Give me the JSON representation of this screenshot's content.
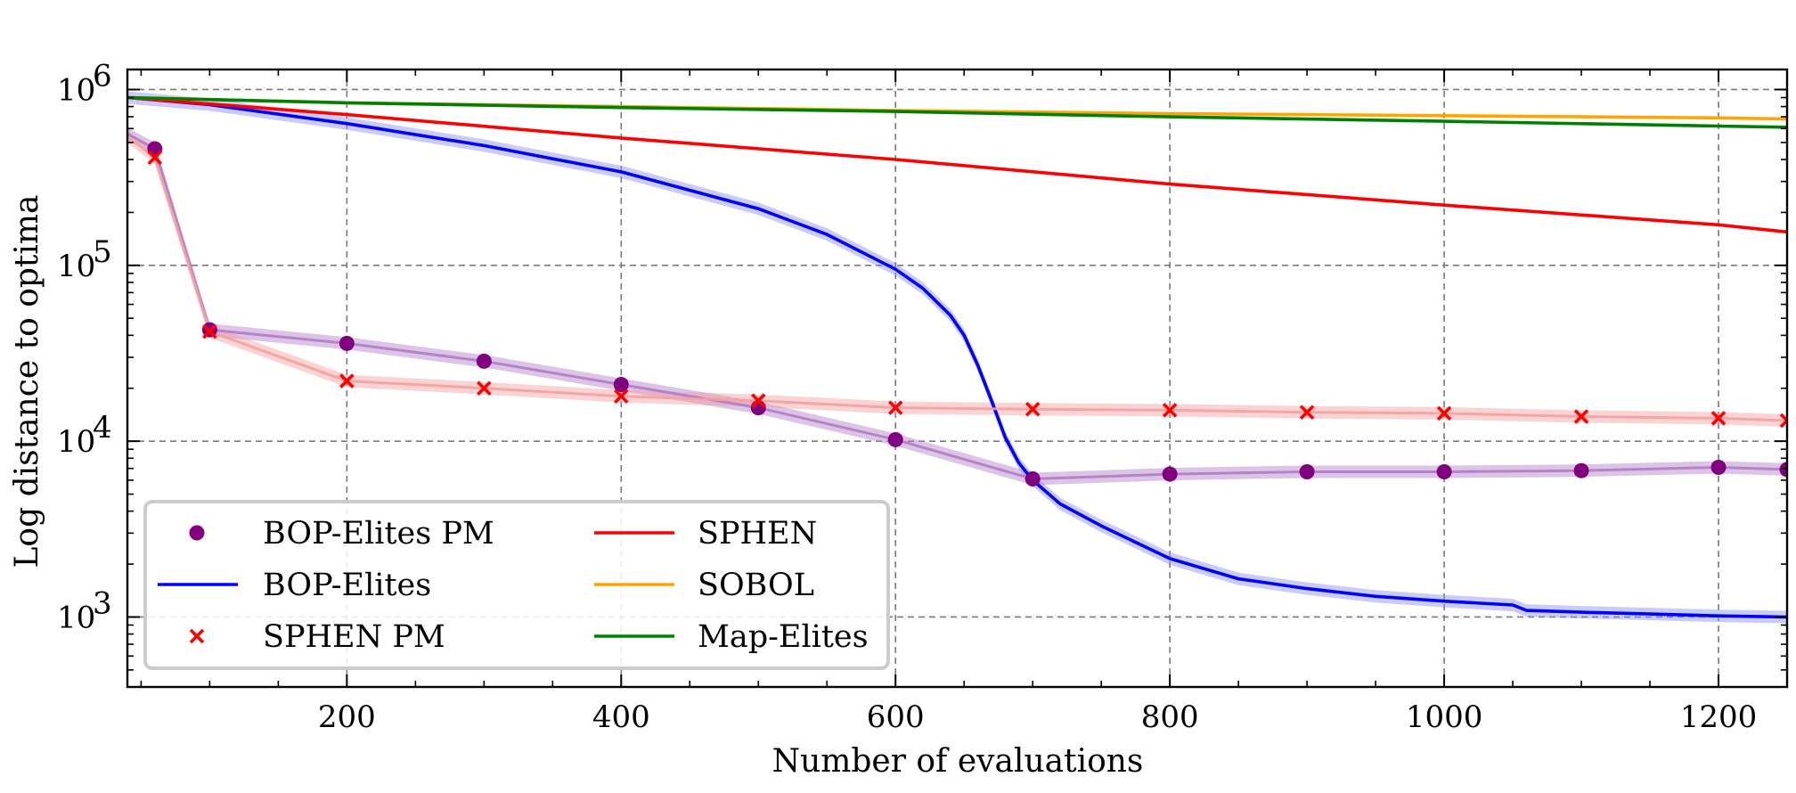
{
  "chart_data": {
    "type": "line",
    "title": "",
    "xlabel": "Number of evaluations",
    "ylabel": "Log distance to optima",
    "xscale": "linear",
    "yscale": "log",
    "xlim": [
      40,
      1250
    ],
    "ylim": [
      400,
      1300000
    ],
    "xticks": [
      {
        "value": 200,
        "label": "200"
      },
      {
        "value": 400,
        "label": "400"
      },
      {
        "value": 600,
        "label": "600"
      },
      {
        "value": 800,
        "label": "800"
      },
      {
        "value": 1000,
        "label": "1000"
      },
      {
        "value": 1200,
        "label": "1200"
      }
    ],
    "yticks": [
      {
        "value": 1000,
        "base": "10",
        "exp": "3"
      },
      {
        "value": 10000,
        "base": "10",
        "exp": "4"
      },
      {
        "value": 100000,
        "base": "10",
        "exp": "5"
      },
      {
        "value": 1000000,
        "base": "10",
        "exp": "6"
      }
    ],
    "grid": true,
    "legend_position": "lower-left",
    "series": [
      {
        "name": "BOP-Elites PM",
        "kind": "markers-line-band",
        "marker": "circle",
        "color": "#800080",
        "band_color": "#b07cc6",
        "x": [
          40,
          60,
          100,
          200,
          300,
          400,
          500,
          600,
          700,
          800,
          900,
          1000,
          1100,
          1200,
          1250
        ],
        "y": [
          560000,
          460000,
          43000,
          36000,
          28500,
          21000,
          15500,
          10200,
          6100,
          6500,
          6700,
          6700,
          6800,
          7100,
          6900
        ],
        "marker_x": [
          60,
          100,
          200,
          300,
          400,
          500,
          600,
          700,
          800,
          900,
          1000,
          1100,
          1200,
          1250
        ]
      },
      {
        "name": "BOP-Elites",
        "kind": "line-band",
        "color": "#0000ff",
        "band_color": "#8c8cf0",
        "x": [
          40,
          100,
          200,
          300,
          400,
          500,
          550,
          600,
          620,
          640,
          650,
          660,
          670,
          680,
          690,
          700,
          720,
          750,
          800,
          850,
          900,
          950,
          1000,
          1050,
          1060,
          1100,
          1150,
          1200,
          1250
        ],
        "y": [
          900000,
          820000,
          640000,
          480000,
          340000,
          210000,
          150000,
          95000,
          74000,
          52000,
          40000,
          27000,
          17000,
          10500,
          7500,
          6000,
          4400,
          3300,
          2150,
          1650,
          1450,
          1310,
          1230,
          1170,
          1090,
          1065,
          1040,
          1015,
          1000
        ]
      },
      {
        "name": "SPHEN PM",
        "kind": "markers-line-band",
        "marker": "x",
        "color": "#ff0000",
        "band_color": "#f5a0a0",
        "x": [
          40,
          60,
          100,
          200,
          300,
          400,
          500,
          600,
          700,
          800,
          900,
          1000,
          1100,
          1200,
          1250
        ],
        "y": [
          540000,
          410000,
          42000,
          22000,
          20000,
          18000,
          17000,
          15500,
          15200,
          15000,
          14600,
          14400,
          13800,
          13500,
          13100
        ],
        "marker_x": [
          60,
          100,
          200,
          300,
          400,
          500,
          600,
          700,
          800,
          900,
          1000,
          1100,
          1200,
          1250
        ]
      },
      {
        "name": "SPHEN",
        "kind": "line",
        "color": "#ff0000",
        "x": [
          40,
          200,
          400,
          600,
          800,
          1000,
          1200,
          1250
        ],
        "y": [
          900000,
          720000,
          530000,
          400000,
          290000,
          220000,
          170000,
          155000
        ]
      },
      {
        "name": "SOBOL",
        "kind": "line",
        "color": "#ffa500",
        "x": [
          40,
          200,
          400,
          600,
          800,
          1000,
          1200,
          1250
        ],
        "y": [
          900000,
          840000,
          800000,
          760000,
          730000,
          710000,
          690000,
          680000
        ]
      },
      {
        "name": "Map-Elites",
        "kind": "line",
        "color": "#008000",
        "x": [
          40,
          200,
          400,
          600,
          800,
          1000,
          1200,
          1250
        ],
        "y": [
          900000,
          840000,
          790000,
          750000,
          700000,
          660000,
          620000,
          610000
        ]
      }
    ],
    "legend": [
      {
        "label": "BOP-Elites PM",
        "series": "BOP-Elites PM",
        "symbol": "circle"
      },
      {
        "label": "BOP-Elites",
        "series": "BOP-Elites",
        "symbol": "line"
      },
      {
        "label": "SPHEN PM",
        "series": "SPHEN PM",
        "symbol": "x"
      },
      {
        "label": "SPHEN",
        "series": "SPHEN",
        "symbol": "line"
      },
      {
        "label": "SOBOL",
        "series": "SOBOL",
        "symbol": "line"
      },
      {
        "label": "Map-Elites",
        "series": "Map-Elites",
        "symbol": "line"
      }
    ]
  }
}
